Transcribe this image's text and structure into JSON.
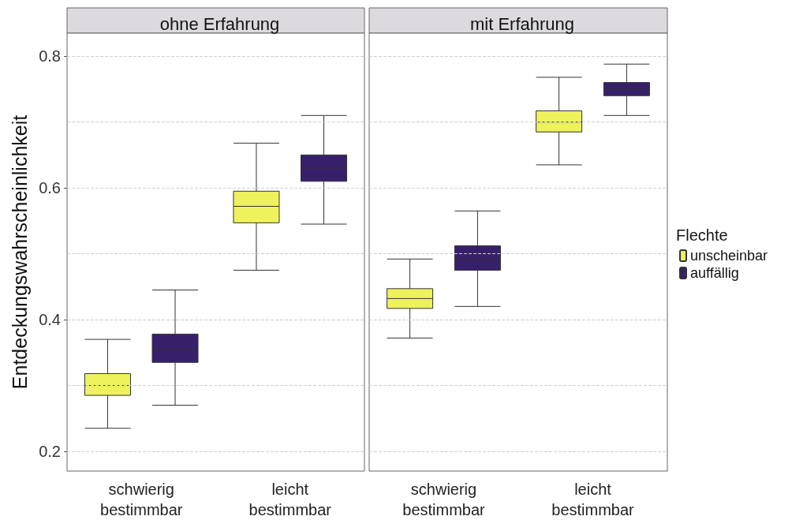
{
  "chart_data": [
    {
      "type": "box",
      "title": "ohne Erfahrung",
      "ylabel": "Entdeckungswahrscheinlichkeit",
      "categories": [
        "schwierig bestimmbar",
        "leicht bestimmbar"
      ],
      "series": [
        {
          "color": "#eef25c",
          "boxes": [
            {
              "low": 0.235,
              "q1": 0.285,
              "median": 0.3,
              "q3": 0.318,
              "high": 0.37
            },
            {
              "low": 0.475,
              "q1": 0.547,
              "median": 0.572,
              "q3": 0.595,
              "high": 0.668
            }
          ]
        },
        {
          "color": "#37206b",
          "boxes": [
            {
              "low": 0.27,
              "q1": 0.335,
              "median": 0.355,
              "q3": 0.378,
              "high": 0.445
            },
            {
              "low": 0.545,
              "q1": 0.61,
              "median": 0.63,
              "q3": 0.65,
              "high": 0.71
            }
          ]
        }
      ],
      "ylim": [
        0.17,
        0.835
      ],
      "yticks": [
        0.2,
        {
          "value": 0.3,
          "label": null
        },
        0.4,
        {
          "value": 0.5,
          "label": null
        },
        0.6,
        {
          "value": 0.7,
          "label": null
        },
        0.8
      ],
      "grid": "y",
      "legend": false
    },
    {
      "type": "box",
      "title": "mit Erfahrung",
      "legend_title": "Flechte",
      "categories": [
        "schwierig bestimmbar",
        "leicht bestimmbar"
      ],
      "series": [
        {
          "name": "unscheinbar",
          "color": "#eef25c",
          "boxes": [
            {
              "low": 0.372,
              "q1": 0.417,
              "median": 0.432,
              "q3": 0.447,
              "high": 0.492
            },
            {
              "low": 0.635,
              "q1": 0.685,
              "median": 0.7,
              "q3": 0.717,
              "high": 0.768
            }
          ]
        },
        {
          "name": "auffällig",
          "color": "#37206b",
          "boxes": [
            {
              "low": 0.42,
              "q1": 0.475,
              "median": 0.492,
              "q3": 0.512,
              "high": 0.565
            },
            {
              "low": 0.71,
              "q1": 0.74,
              "median": 0.75,
              "q3": 0.76,
              "high": 0.788
            }
          ]
        }
      ],
      "ylim": [
        0.17,
        0.835
      ],
      "yticks": [
        0.2,
        {
          "value": 0.3,
          "label": null
        },
        0.4,
        {
          "value": 0.5,
          "label": null
        },
        0.6,
        {
          "value": 0.7,
          "label": null
        },
        0.8
      ],
      "grid": "y",
      "tick_labels": "x",
      "legend": "right"
    }
  ]
}
